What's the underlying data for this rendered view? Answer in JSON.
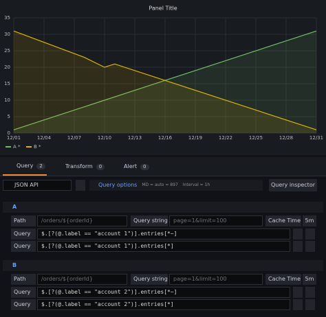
{
  "chart_data": {
    "type": "line",
    "title": "Panel Title",
    "xlim": [
      "12/01",
      "12/31"
    ],
    "xticks": [
      "12/01",
      "12/04",
      "12/07",
      "12/10",
      "12/13",
      "12/16",
      "12/19",
      "12/22",
      "12/25",
      "12/28",
      "12/31"
    ],
    "ylim": [
      0,
      35
    ],
    "yticks": [
      0,
      5,
      10,
      15,
      20,
      25,
      30,
      35
    ],
    "grid": true,
    "series": [
      {
        "name": "A *",
        "color": "#73bf69",
        "x": [
          "12/01",
          "12/31"
        ],
        "values": [
          1,
          31
        ]
      },
      {
        "name": "B *",
        "color": "#e0b400",
        "x": [
          "12/01",
          "12/08",
          "12/10",
          "12/11",
          "12/31"
        ],
        "values": [
          31,
          23,
          20,
          21,
          1
        ]
      }
    ]
  },
  "tabs": [
    {
      "label": "Query",
      "count": 2
    },
    {
      "label": "Transform",
      "count": 0
    },
    {
      "label": "Alert",
      "count": 0
    }
  ],
  "toolbar": {
    "datasource": "JSON API",
    "query_options": "Query options",
    "md": "MD = auto = 897",
    "interval": "Interval = 1h",
    "inspector": "Query inspector"
  },
  "queries": [
    {
      "name": "A",
      "path_label": "Path",
      "path": "/orders/${orderId}",
      "query_string_label": "Query string",
      "query_string": "page=1&limit=100",
      "cache_label": "Cache Time",
      "cache": "5m",
      "fields": [
        {
          "label": "Query",
          "value": "$.[?(@.label == \"account 1\")].entries[*~]"
        },
        {
          "label": "Query",
          "value": "$.[?(@.label == \"account 1\")].entries[*]"
        }
      ]
    },
    {
      "name": "B",
      "path_label": "Path",
      "path": "/orders/${orderId}",
      "query_string_label": "Query string",
      "query_string": "page=1&limit=100",
      "cache_label": "Cache Time",
      "cache": "5m",
      "fields": [
        {
          "label": "Query",
          "value": "$.[?(@.label == \"account 2\")].entries[*~]"
        },
        {
          "label": "Query",
          "value": "$.[?(@.label == \"account 2\")].entries[*]"
        }
      ]
    }
  ]
}
